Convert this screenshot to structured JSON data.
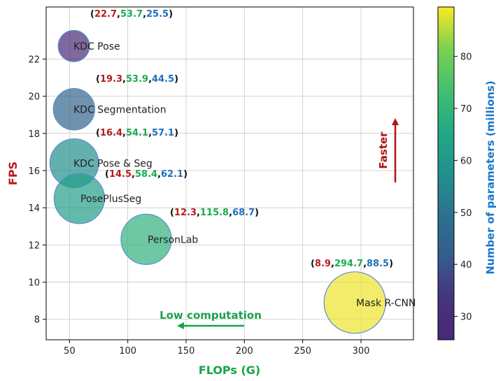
{
  "chart_data": {
    "type": "scatter",
    "xlabel": "FLOPs (G)",
    "ylabel": "FPS",
    "colorbar_label": "Number of parameters (millions)",
    "xlim": [
      30,
      345
    ],
    "ylim": [
      6.9,
      24.8
    ],
    "x_ticks": [
      50,
      100,
      150,
      200,
      250,
      300
    ],
    "y_ticks": [
      8,
      10,
      12,
      14,
      16,
      18,
      20,
      22
    ],
    "colorbar_range": [
      25.5,
      89.5
    ],
    "colorbar_ticks": [
      30,
      40,
      50,
      60,
      70,
      80
    ],
    "grid": true,
    "points": [
      {
        "name": "KDC Pose",
        "fps": 22.7,
        "flops": 53.7,
        "params": 25.5,
        "fps_label": "22.7",
        "flops_label": "53.7",
        "params_label": "25.5",
        "radius_scale": 0.56
      },
      {
        "name": "KDC Segmentation",
        "fps": 19.3,
        "flops": 53.9,
        "params": 44.5,
        "fps_label": "19.3",
        "flops_label": "53.9",
        "params_label": "44.5",
        "radius_scale": 0.74
      },
      {
        "name": "KDC Pose & Seg",
        "fps": 16.4,
        "flops": 54.1,
        "params": 57.1,
        "fps_label": "16.4",
        "flops_label": "54.1",
        "params_label": "57.1",
        "radius_scale": 0.87
      },
      {
        "name": "PosePlusSeg",
        "fps": 14.5,
        "flops": 58.4,
        "params": 62.1,
        "fps_label": "14.5",
        "flops_label": "58.4",
        "params_label": "62.1",
        "radius_scale": 0.9
      },
      {
        "name": "PersonLab",
        "fps": 12.3,
        "flops": 115.8,
        "params": 68.7,
        "fps_label": "12.3",
        "flops_label": "115.8",
        "params_label": "68.7",
        "radius_scale": 0.9
      },
      {
        "name": "Mask R-CNN",
        "fps": 8.9,
        "flops": 294.7,
        "params": 88.5,
        "fps_label": "8.9",
        "flops_label": "294.7",
        "params_label": "88.5",
        "radius_scale": 1.1
      }
    ],
    "annotations": {
      "faster": "Faster",
      "low_computation": "Low computation"
    },
    "colors": {
      "fps": "#b31e1e",
      "flops": "#1aab4f",
      "params": "#1f6fbf",
      "fps_axis_label": "#c0161b",
      "flops_axis_label": "#16a34a",
      "params_axis_label": "#1877c9",
      "faster_arrow": "#b01515",
      "low_comp_arrow": "#16a34a"
    }
  }
}
